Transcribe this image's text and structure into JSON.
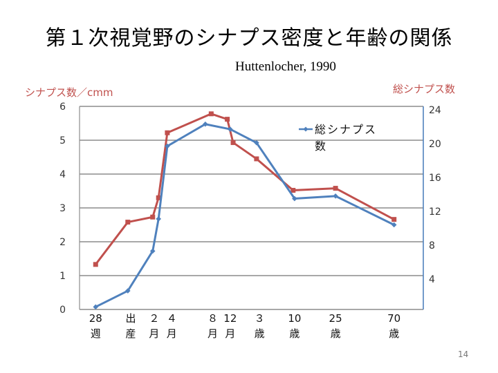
{
  "slide": {
    "title": "第１次視覚野のシナプス密度と年齢の関係",
    "citation": "Huttenlocher, 1990",
    "page_number": "14"
  },
  "chart_data": {
    "type": "line",
    "title": "第１次視覚野のシナプス密度と年齢の関係",
    "left_axis_label": "シナプス数／cmm",
    "right_axis_label": "総シナプス数",
    "ylim_left": [
      0,
      6
    ],
    "yticks_left": [
      "0",
      "1",
      "2",
      "3",
      "4",
      "5",
      "6"
    ],
    "ylim_right": [
      0,
      24
    ],
    "yticks_right": [
      "4",
      "8",
      "12",
      "16",
      "20",
      "24"
    ],
    "x_labels": [
      {
        "x": 0,
        "line1": "28",
        "line2": "週"
      },
      {
        "x": 1.2,
        "line1": "出",
        "line2": "産"
      },
      {
        "x": 2,
        "line1": "２",
        "line2": "月"
      },
      {
        "x": 2.6,
        "line1": "４",
        "line2": "月"
      },
      {
        "x": 4,
        "line1": "８",
        "line2": "月"
      },
      {
        "x": 4.6,
        "line1": "12",
        "line2": "月"
      },
      {
        "x": 5.6,
        "line1": "３",
        "line2": "歳"
      },
      {
        "x": 6.8,
        "line1": "10",
        "line2": "歳"
      },
      {
        "x": 8.2,
        "line1": "25",
        "line2": "歳"
      },
      {
        "x": 10.2,
        "line1": "70",
        "line2": "歳"
      }
    ],
    "xlim": [
      -0.55,
      11.2
    ],
    "series": [
      {
        "name": "シナプス数／cmm",
        "axis": "left",
        "color": "#c0504d",
        "marker": "square",
        "show_in_legend": false,
        "points": [
          [
            0,
            1.33
          ],
          [
            1.1,
            2.58
          ],
          [
            1.95,
            2.73
          ],
          [
            2.15,
            3.3
          ],
          [
            2.45,
            5.22
          ],
          [
            3.95,
            5.78
          ],
          [
            4.5,
            5.62
          ],
          [
            4.7,
            4.93
          ],
          [
            5.5,
            4.45
          ],
          [
            6.75,
            3.52
          ],
          [
            8.2,
            3.58
          ],
          [
            10.2,
            2.66
          ]
        ]
      },
      {
        "name": "総シナプス数",
        "axis": "right",
        "color": "#4f81bd",
        "marker": "diamond",
        "show_in_legend": true,
        "points": [
          [
            0,
            0.3
          ],
          [
            1.1,
            2.2
          ],
          [
            1.95,
            6.9
          ],
          [
            2.15,
            10.7
          ],
          [
            2.45,
            19.3
          ],
          [
            3.75,
            21.9
          ],
          [
            4.6,
            21.3
          ],
          [
            5.5,
            19.7
          ],
          [
            6.8,
            13.1
          ],
          [
            8.2,
            13.4
          ],
          [
            10.2,
            10.0
          ]
        ]
      }
    ]
  }
}
